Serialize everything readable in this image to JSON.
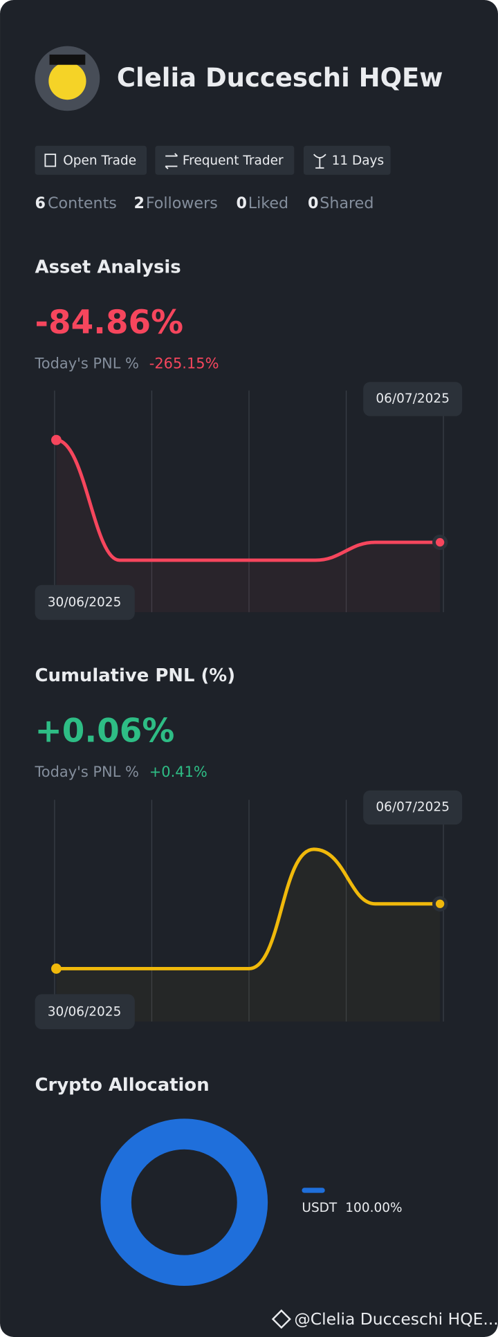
{
  "profile": {
    "name": "Clelia Ducceschi HQEw",
    "badges": [
      "Open Trade",
      "Frequent Trader",
      "11 Days"
    ],
    "stats": [
      {
        "count": "6",
        "label": "Contents"
      },
      {
        "count": "2",
        "label": "Followers"
      },
      {
        "count": "0",
        "label": "Liked"
      },
      {
        "count": "0",
        "label": "Shared"
      }
    ]
  },
  "asset_analysis": {
    "title": "Asset Analysis",
    "value": "-84.86%",
    "today_label": "Today's PNL %",
    "today_value": "-265.15%",
    "start_date": "30/06/2025",
    "end_date": "06/07/2025"
  },
  "cumulative_pnl": {
    "title": "Cumulative PNL (%)",
    "value": "+0.06%",
    "today_label": "Today's PNL %",
    "today_value": "+0.41%",
    "start_date": "30/06/2025",
    "end_date": "06/07/2025"
  },
  "crypto_allocation": {
    "title": "Crypto Allocation",
    "asset": "USDT",
    "share": "100.00%"
  },
  "footer": {
    "handle": "@Clelia Ducceschi HQE..."
  }
}
